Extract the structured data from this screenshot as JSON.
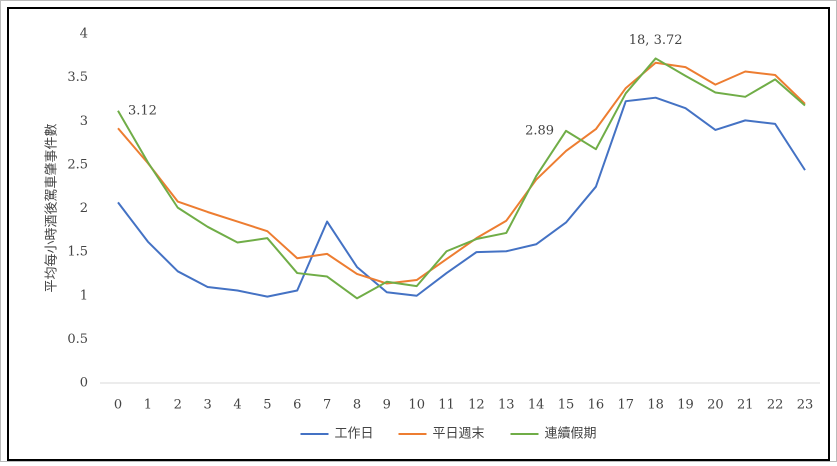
{
  "chart_data": {
    "type": "line",
    "ylabel": "平均每小時酒後駕車肇事件數",
    "categories": [
      "0",
      "1",
      "2",
      "3",
      "4",
      "5",
      "6",
      "7",
      "8",
      "9",
      "10",
      "11",
      "12",
      "13",
      "14",
      "15",
      "16",
      "17",
      "18",
      "19",
      "20",
      "21",
      "22",
      "23"
    ],
    "series": [
      {
        "name": "工作日",
        "color": "#4472c4",
        "values": [
          2.07,
          1.62,
          1.28,
          1.1,
          1.06,
          0.99,
          1.06,
          1.85,
          1.33,
          1.04,
          1.0,
          1.26,
          1.5,
          1.51,
          1.59,
          1.84,
          2.25,
          3.23,
          3.27,
          3.15,
          2.9,
          3.01,
          2.97,
          2.44
        ]
      },
      {
        "name": "平日週末",
        "color": "#ed7d31",
        "values": [
          2.92,
          2.52,
          2.08,
          1.96,
          1.85,
          1.74,
          1.43,
          1.48,
          1.25,
          1.14,
          1.18,
          1.42,
          1.66,
          1.86,
          2.33,
          2.66,
          2.91,
          3.38,
          3.67,
          3.62,
          3.42,
          3.57,
          3.53,
          3.2
        ]
      },
      {
        "name": "連續假期",
        "color": "#70ad47",
        "values": [
          3.12,
          2.53,
          2.01,
          1.79,
          1.61,
          1.66,
          1.26,
          1.22,
          0.97,
          1.16,
          1.11,
          1.51,
          1.65,
          1.72,
          2.37,
          2.89,
          2.68,
          3.32,
          3.72,
          3.52,
          3.33,
          3.28,
          3.48,
          3.18
        ]
      }
    ],
    "annotations": [
      {
        "text": "3.12",
        "x": 0,
        "y": 3.12
      },
      {
        "text": "2.89",
        "x": 15,
        "y": 2.89
      },
      {
        "text": "18, 3.72",
        "x": 18,
        "y": 3.72
      }
    ],
    "ylim": [
      0,
      4
    ],
    "yticks": [
      0,
      0.5,
      1,
      1.5,
      2,
      2.5,
      3,
      3.5,
      4
    ],
    "grid": false,
    "legend": "bottom"
  }
}
